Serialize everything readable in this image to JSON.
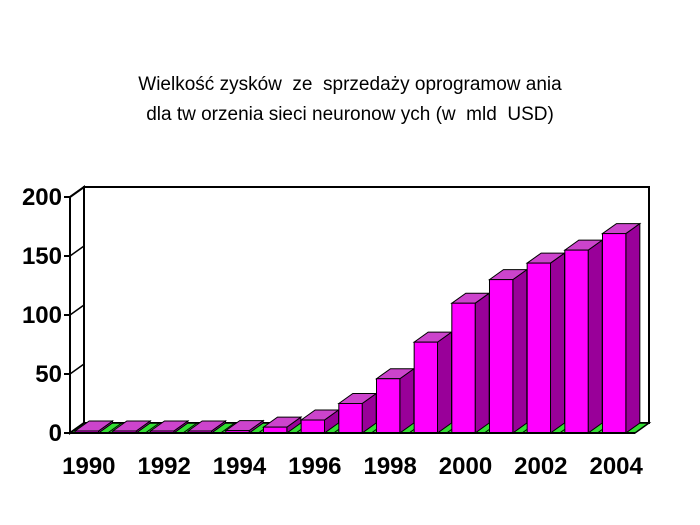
{
  "chart_data": {
    "type": "bar",
    "title_lines": [
      "Wielkość zysków  ze  sprzedaży oprogramow ania",
      "dla tw orzenia sieci neuronow ych (w  mld  USD)"
    ],
    "categories": [
      "1990",
      "1991",
      "1992",
      "1993",
      "1994",
      "1995",
      "1996",
      "1997",
      "1998",
      "1999",
      "2000",
      "2001",
      "2002",
      "2003",
      "2004"
    ],
    "values": [
      0,
      0,
      0,
      1,
      2,
      5,
      11,
      25,
      46,
      77,
      110,
      130,
      144,
      155,
      169
    ],
    "x_tick_labels": [
      "1990",
      "1992",
      "1994",
      "1996",
      "1998",
      "2000",
      "2002",
      "2004"
    ],
    "y_tick_labels": [
      "0",
      "50",
      "100",
      "150",
      "200"
    ],
    "ylim": [
      0,
      200
    ],
    "grid": false,
    "legend": "none",
    "colors": {
      "bar_front": "#ff00ff",
      "bar_top": "#cc44cc",
      "bar_side": "#990099",
      "floor": "#33dd33",
      "axis": "#000000"
    }
  }
}
